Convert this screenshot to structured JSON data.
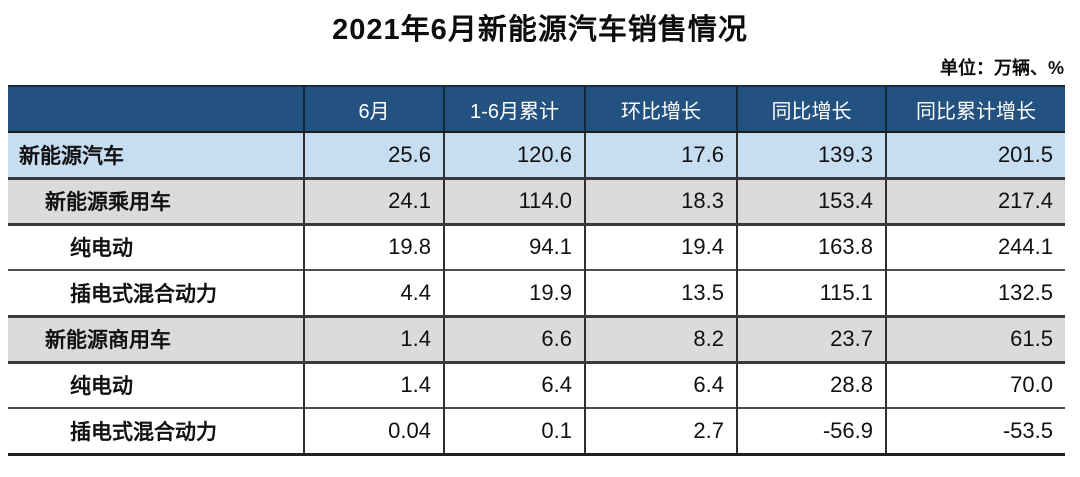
{
  "title": "2021年6月新能源汽车销售情况",
  "unit_note": "单位：万辆、%",
  "colors": {
    "header_bg": "#235180",
    "header_text": "#ffffff",
    "row_blue": "#C7DDF1",
    "row_gray": "#DBDBDB",
    "row_white": "#ffffff",
    "border_dark": "#2f2f2f",
    "border_heavy": "#1f1f1f",
    "text_main": "#111111"
  },
  "table": {
    "columns": [
      "",
      "6月",
      "1-6月累计",
      "环比增长",
      "同比增长",
      "同比累计增长"
    ],
    "rows": [
      {
        "label": "新能源汽车",
        "indent": 0,
        "style": "highlight-blue",
        "values": [
          "25.6",
          "120.6",
          "17.6",
          "139.3",
          "201.5"
        ]
      },
      {
        "label": "新能源乘用车",
        "indent": 1,
        "style": "highlight-gray",
        "values": [
          "24.1",
          "114.0",
          "18.3",
          "153.4",
          "217.4"
        ]
      },
      {
        "label": "纯电动",
        "indent": 2,
        "style": "plain",
        "values": [
          "19.8",
          "94.1",
          "19.4",
          "163.8",
          "244.1"
        ]
      },
      {
        "label": "插电式混合动力",
        "indent": 2,
        "style": "plain",
        "values": [
          "4.4",
          "19.9",
          "13.5",
          "115.1",
          "132.5"
        ]
      },
      {
        "label": "新能源商用车",
        "indent": 1,
        "style": "highlight-gray",
        "values": [
          "1.4",
          "6.6",
          "8.2",
          "23.7",
          "61.5"
        ]
      },
      {
        "label": "纯电动",
        "indent": 2,
        "style": "plain",
        "values": [
          "1.4",
          "6.4",
          "6.4",
          "28.8",
          "70.0"
        ]
      },
      {
        "label": "插电式混合动力",
        "indent": 2,
        "style": "plain",
        "values": [
          "0.04",
          "0.1",
          "2.7",
          "-56.9",
          "-53.5"
        ]
      }
    ]
  },
  "chart_data": {
    "type": "table",
    "title": "2021年6月新能源汽车销售情况",
    "unit": "单位：万辆、%",
    "columns": [
      "6月",
      "1-6月累计",
      "环比增长",
      "同比增长",
      "同比累计增长"
    ],
    "rows": [
      {
        "category": "新能源汽车",
        "level": 0,
        "june": 25.6,
        "jan_jun_total": 120.6,
        "mom_growth": 17.6,
        "yoy_growth": 139.3,
        "yoy_cumulative_growth": 201.5
      },
      {
        "category": "新能源乘用车",
        "level": 1,
        "june": 24.1,
        "jan_jun_total": 114.0,
        "mom_growth": 18.3,
        "yoy_growth": 153.4,
        "yoy_cumulative_growth": 217.4
      },
      {
        "category": "纯电动",
        "level": 2,
        "june": 19.8,
        "jan_jun_total": 94.1,
        "mom_growth": 19.4,
        "yoy_growth": 163.8,
        "yoy_cumulative_growth": 244.1
      },
      {
        "category": "插电式混合动力",
        "level": 2,
        "june": 4.4,
        "jan_jun_total": 19.9,
        "mom_growth": 13.5,
        "yoy_growth": 115.1,
        "yoy_cumulative_growth": 132.5
      },
      {
        "category": "新能源商用车",
        "level": 1,
        "june": 1.4,
        "jan_jun_total": 6.6,
        "mom_growth": 8.2,
        "yoy_growth": 23.7,
        "yoy_cumulative_growth": 61.5
      },
      {
        "category": "纯电动",
        "level": 2,
        "june": 1.4,
        "jan_jun_total": 6.4,
        "mom_growth": 6.4,
        "yoy_growth": 28.8,
        "yoy_cumulative_growth": 70.0
      },
      {
        "category": "插电式混合动力",
        "level": 2,
        "june": 0.04,
        "jan_jun_total": 0.1,
        "mom_growth": 2.7,
        "yoy_growth": -56.9,
        "yoy_cumulative_growth": -53.5
      }
    ]
  }
}
